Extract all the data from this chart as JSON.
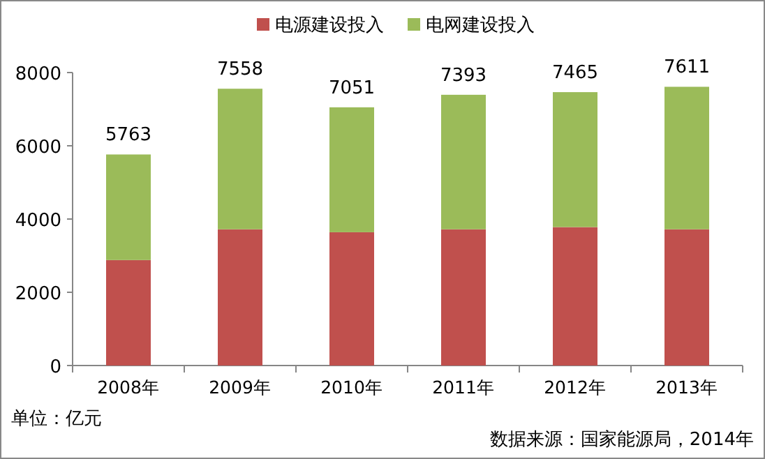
{
  "chart_data": {
    "type": "bar",
    "stacked": true,
    "categories": [
      "2008年",
      "2009年",
      "2010年",
      "2011年",
      "2012年",
      "2013年"
    ],
    "series": [
      {
        "name": "电源建设投入",
        "color": "#c0504d",
        "values": [
          2880,
          3720,
          3640,
          3720,
          3780,
          3720
        ]
      },
      {
        "name": "电网建设投入",
        "color": "#9bbb59",
        "values": [
          2883,
          3838,
          3411,
          3673,
          3685,
          3891
        ]
      }
    ],
    "totals": [
      "5763",
      "7558",
      "7051",
      "7393",
      "7465",
      "7611"
    ],
    "ylim": [
      0,
      8000
    ],
    "yticks": [
      0,
      2000,
      4000,
      6000,
      8000
    ],
    "grid": false,
    "legend": "top",
    "annotations": [
      "单位：亿元",
      "数据来源：国家能源局，2014年"
    ]
  }
}
